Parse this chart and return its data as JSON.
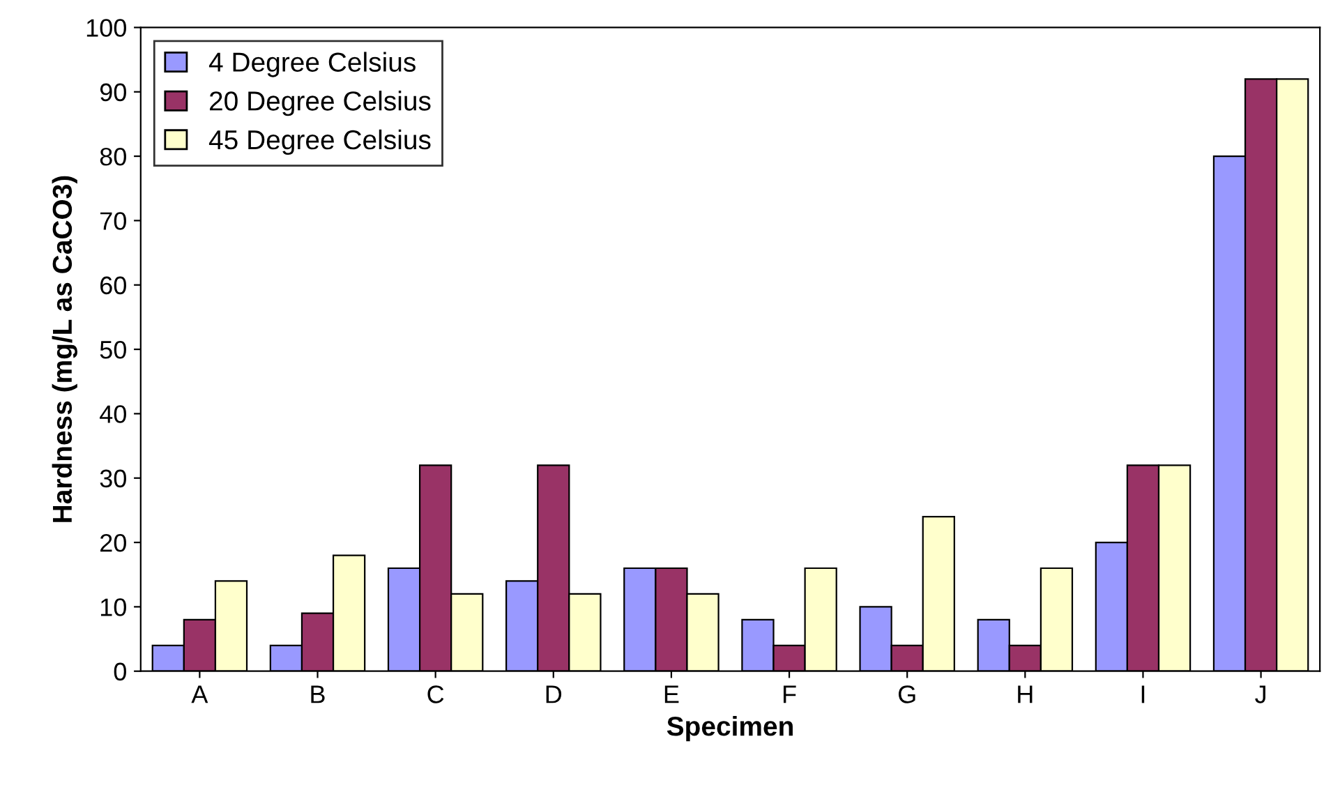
{
  "chart_data": {
    "type": "bar",
    "xlabel": "Specimen",
    "ylabel": "Hardness (mg/L as CaCO3)",
    "categories": [
      "A",
      "B",
      "C",
      "D",
      "E",
      "F",
      "G",
      "H",
      "I",
      "J"
    ],
    "series": [
      {
        "name": "4 Degree Celsius",
        "color": "#9999ff",
        "values": [
          4,
          4,
          16,
          14,
          16,
          8,
          10,
          8,
          20,
          80
        ]
      },
      {
        "name": "20 Degree Celsius",
        "color": "#993366",
        "values": [
          8,
          9,
          32,
          32,
          16,
          4,
          4,
          4,
          32,
          92
        ]
      },
      {
        "name": "45 Degree Celsius",
        "color": "#ffffcc",
        "values": [
          14,
          18,
          12,
          12,
          12,
          16,
          24,
          16,
          32,
          92
        ]
      }
    ],
    "ylim": [
      0,
      100
    ],
    "yticks": [
      0,
      10,
      20,
      30,
      40,
      50,
      60,
      70,
      80,
      90,
      100
    ],
    "grid": false,
    "legend": "top left"
  }
}
